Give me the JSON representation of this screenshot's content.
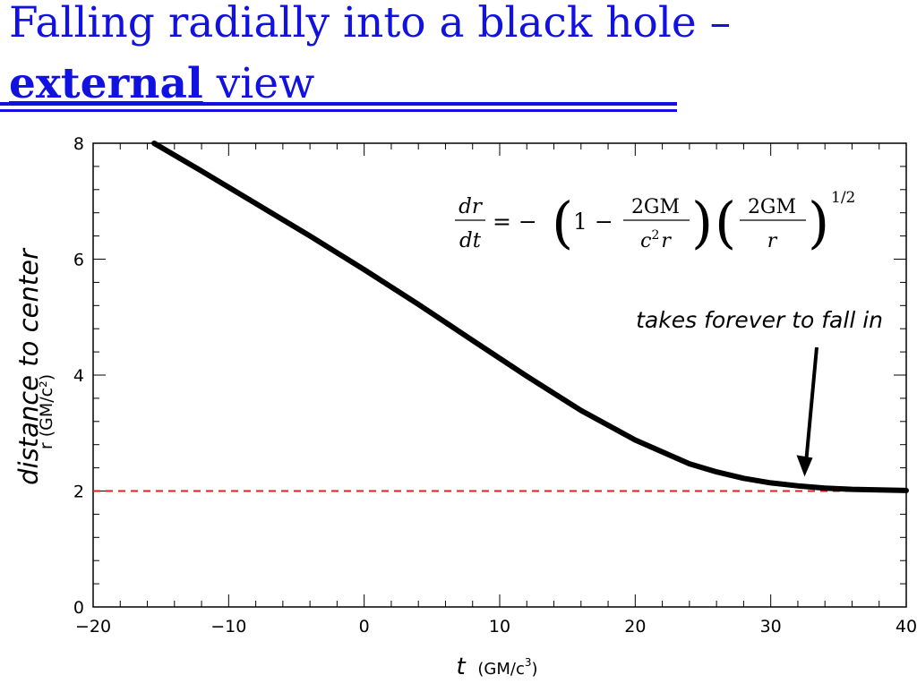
{
  "slide": {
    "title_part1": "Falling radially into a black hole –",
    "title_emph": "external",
    "title_part2": " view",
    "title_color": "#1212e0"
  },
  "chart_data": {
    "type": "line",
    "xlabel": "t",
    "xunit_main": "(GM/c",
    "xunit_exp": "3",
    "xunit_close": ")",
    "ylabel": "distance to center",
    "ylabel_faint": "r  (GM/c²)",
    "xlim": [
      -20,
      40
    ],
    "ylim": [
      0,
      8
    ],
    "xticks": [
      -20,
      -10,
      0,
      10,
      20,
      30,
      40
    ],
    "yticks": [
      0,
      2,
      4,
      6,
      8
    ],
    "xtick_labels": [
      "−20",
      "−10",
      "0",
      "10",
      "20",
      "30",
      "40"
    ],
    "ytick_labels": [
      "0",
      "2",
      "4",
      "6",
      "8"
    ],
    "series": [
      {
        "style": "solid-thick-black",
        "color": "#000000",
        "x": [
          -15.5,
          -12,
          -8,
          -4,
          0,
          4,
          8,
          12,
          16,
          20,
          24,
          26,
          28,
          30,
          32,
          34,
          36,
          38,
          40
        ],
        "y": [
          8.0,
          7.52,
          6.96,
          6.4,
          5.82,
          5.22,
          4.6,
          3.98,
          3.39,
          2.88,
          2.47,
          2.33,
          2.22,
          2.14,
          2.09,
          2.05,
          2.03,
          2.02,
          2.01
        ]
      },
      {
        "style": "dashed-red",
        "color": "#dd2222",
        "x": [
          -20,
          40
        ],
        "y": [
          2,
          2
        ]
      }
    ],
    "annotation": {
      "text": "takes forever to fall in",
      "arrow_to": [
        32.5,
        2.25
      ]
    },
    "equation": {
      "lhs_num": "dr",
      "lhs_den": "dt",
      "eq_sign": "= −",
      "one_minus": "1 −",
      "f1_num": "2GM",
      "f1_den_c": "c",
      "f1_den_exp": "2",
      "f1_den_r": "r",
      "f2_num": "2GM",
      "f2_den": "r",
      "exponent": "1/2"
    }
  }
}
